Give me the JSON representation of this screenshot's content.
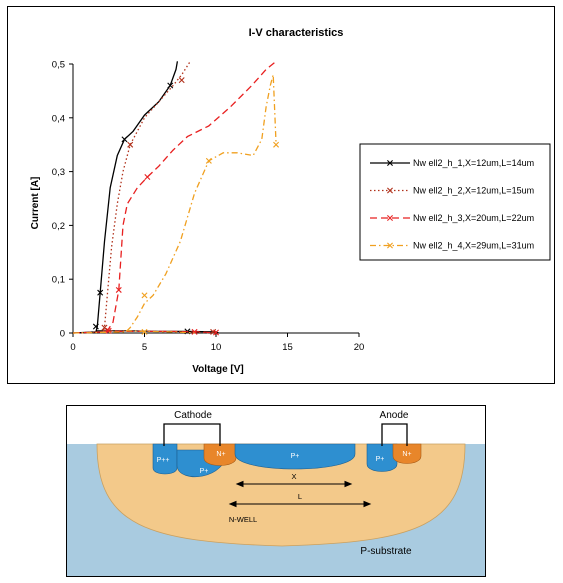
{
  "chart_data": {
    "type": "line",
    "title": "I-V characteristics",
    "xlabel": "Voltage [V]",
    "ylabel": "Current [A]",
    "xlim": [
      0,
      20
    ],
    "ylim": [
      0,
      0.5
    ],
    "x_ticks": [
      "0",
      "5",
      "10",
      "15",
      "20"
    ],
    "y_ticks": [
      "0",
      "0,1",
      "0,2",
      "0,3",
      "0,4",
      "0,5"
    ],
    "legend_position": "right",
    "series": [
      {
        "name": "Nw ell2_h_1,X=12um,L=14um",
        "color": "#000000",
        "dash": "solid",
        "x": [
          0,
          1.6,
          1.7,
          1.9,
          2.2,
          2.6,
          3.1,
          3.6,
          4.2,
          5.0,
          6.0,
          6.8,
          7.2,
          7.3
        ],
        "y": [
          0,
          0.002,
          0.012,
          0.075,
          0.17,
          0.27,
          0.33,
          0.36,
          0.375,
          0.405,
          0.43,
          0.46,
          0.49,
          0.505
        ],
        "return_x": [
          1.6,
          4,
          6,
          8,
          10,
          10.2
        ],
        "return_y": [
          0.004,
          0.004,
          0.003,
          0.003,
          0.002,
          0.0
        ],
        "markers_x": [
          1.6,
          1.9,
          3.6,
          6.8,
          8.0
        ],
        "markers_y": [
          0.012,
          0.075,
          0.36,
          0.46,
          0.003
        ]
      },
      {
        "name": "Nw ell2_h_2,X=12um,L=15um",
        "color": "#b0301a",
        "dash": "dot",
        "x": [
          0,
          2.1,
          2.2,
          2.4,
          2.7,
          3.1,
          3.5,
          4.0,
          5.0,
          6.0,
          7.0,
          7.6,
          8.2
        ],
        "y": [
          0,
          0.002,
          0.01,
          0.07,
          0.16,
          0.24,
          0.3,
          0.35,
          0.4,
          0.43,
          0.46,
          0.48,
          0.505
        ],
        "return_x": [
          2.1,
          4,
          6,
          8,
          9.8
        ],
        "return_y": [
          0.004,
          0.004,
          0.003,
          0.002,
          0.0
        ],
        "markers_x": [
          2.2,
          2.4,
          4.0,
          7.6,
          9.8
        ],
        "markers_y": [
          0.01,
          0.005,
          0.35,
          0.47,
          0.002
        ]
      },
      {
        "name": "Nw ell2_h_3,X=20um,L=22um",
        "color": "#e82020",
        "dash": "dash",
        "x": [
          0,
          2.2,
          2.4,
          2.8,
          3.2,
          3.5,
          3.8,
          4.5,
          5.2,
          6.0,
          7.0,
          8.0,
          9.5,
          11.0,
          12.5,
          13.5,
          14.2
        ],
        "y": [
          0,
          0.002,
          0.004,
          0.02,
          0.08,
          0.2,
          0.24,
          0.27,
          0.29,
          0.31,
          0.34,
          0.365,
          0.385,
          0.42,
          0.46,
          0.49,
          0.505
        ],
        "return_x": [
          2.2,
          5,
          7,
          9,
          10
        ],
        "return_y": [
          0.003,
          0.003,
          0.003,
          0.002,
          0.0
        ],
        "markers_x": [
          2.5,
          3.2,
          5.2,
          8.5,
          10.0
        ],
        "markers_y": [
          0.004,
          0.08,
          0.29,
          0.002,
          0.001
        ]
      },
      {
        "name": "Nw ell2_h_4,X=29um,L=31um",
        "color": "#f0a020",
        "dash": "dashdot",
        "x": [
          0,
          3.7,
          4.0,
          4.5,
          5.0,
          5.6,
          6.5,
          7.5,
          8.5,
          9.5,
          10.5,
          11.5,
          12.6,
          13.2,
          13.5,
          13.8,
          14.0,
          14.2
        ],
        "y": [
          0,
          0.002,
          0.01,
          0.03,
          0.055,
          0.07,
          0.11,
          0.17,
          0.26,
          0.32,
          0.335,
          0.335,
          0.33,
          0.36,
          0.42,
          0.46,
          0.48,
          0.35
        ],
        "return_x": [
          3.7,
          5,
          7,
          8.5
        ],
        "return_y": [
          0.004,
          0.003,
          0.002,
          0.0
        ],
        "markers_x": [
          5.0,
          9.5,
          14.2,
          5.0
        ],
        "markers_y": [
          0.07,
          0.32,
          0.35,
          0.002
        ]
      }
    ]
  },
  "diagram": {
    "cathode_label": "Cathode",
    "anode_label": "Anode",
    "regions": {
      "ppp": "P++",
      "nplus": "N+",
      "pplus": "P+",
      "pplus_center": "P+",
      "pplus_anode": "P+",
      "nplus_anode": "N+"
    },
    "x_label": "X",
    "l_label": "L",
    "nwell_label": "N-WELL",
    "substrate_label": "P-substrate",
    "colors": {
      "substrate": "#a9cbe0",
      "nwell": "#f3c98a",
      "pplus": "#2e8fd0",
      "nplus": "#e8862a"
    }
  }
}
